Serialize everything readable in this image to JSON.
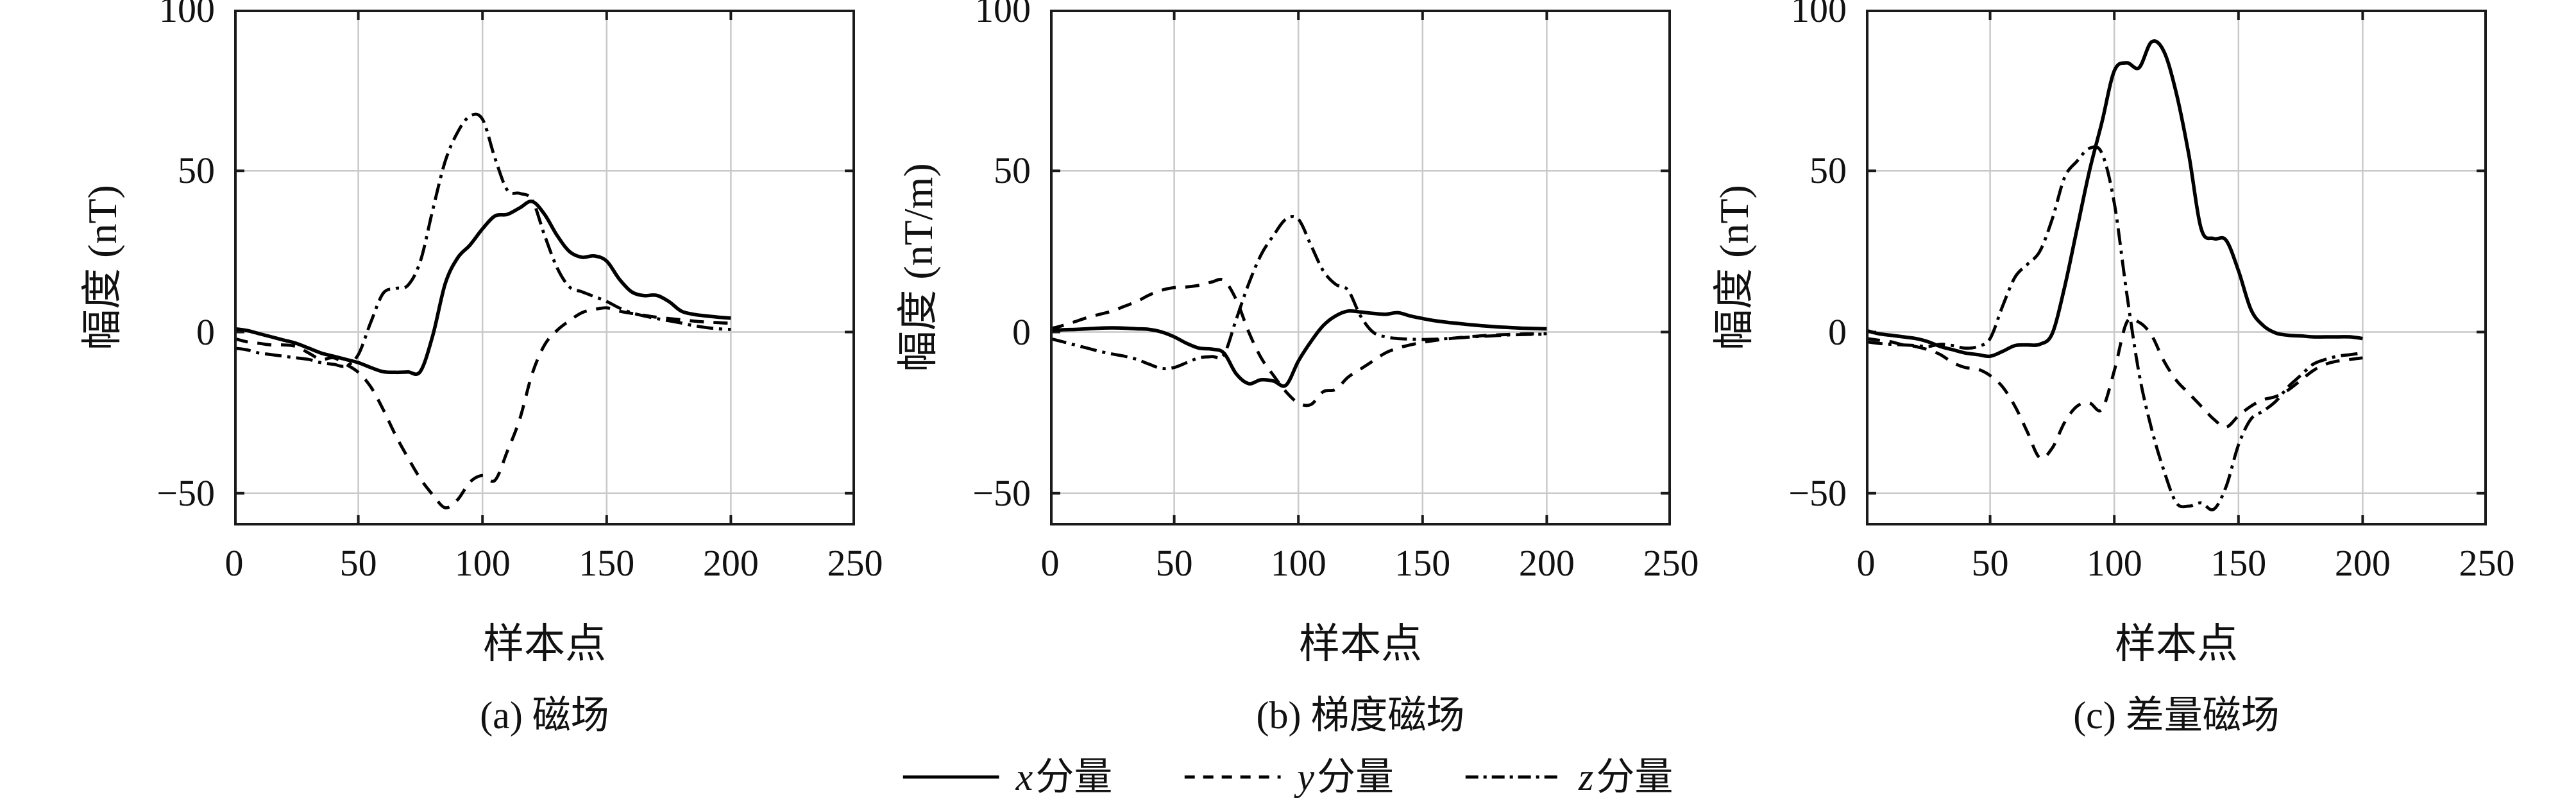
{
  "figure": {
    "background": "#ffffff",
    "curve_color": "#000000",
    "grid_color": "#c9c9c9",
    "axis_color": "#1a1a1a"
  },
  "legend": {
    "items": [
      {
        "var": "x",
        "text": "分量",
        "style": "solid"
      },
      {
        "var": "y",
        "text": "分量",
        "style": "dashed"
      },
      {
        "var": "z",
        "text": "分量",
        "style": "dashdot"
      }
    ]
  },
  "chart_data": [
    {
      "id": "a",
      "type": "line",
      "caption": "(a) 磁场",
      "xlabel": "样本点",
      "ylabel": "幅度 (nT)",
      "xlim": [
        0,
        250
      ],
      "ylim": [
        -60,
        100
      ],
      "xticks": [
        0,
        50,
        100,
        150,
        200,
        250
      ],
      "yticks": [
        100,
        50,
        0,
        -50
      ],
      "grid": true,
      "legend_position": "below-figure",
      "x_start": 0,
      "x_step": 5,
      "series": [
        {
          "name": "x分量",
          "style": "solid",
          "values": [
            1,
            0.5,
            -0.5,
            -1.5,
            -2.5,
            -3.5,
            -5,
            -6.5,
            -7.5,
            -8.5,
            -9.5,
            -11,
            -12.3,
            -12.5,
            -12.4,
            -12.2,
            -1,
            15,
            23,
            27,
            32,
            36,
            36.5,
            38.5,
            40.5,
            36.5,
            30,
            25,
            23.2,
            23.6,
            22,
            16.5,
            12.5,
            11.3,
            11.4,
            9.5,
            6.5,
            5.5,
            5,
            4.6,
            4.3
          ]
        },
        {
          "name": "y分量",
          "style": "dashed",
          "values": [
            -2,
            -3,
            -3.5,
            -4,
            -4,
            -4.5,
            -6.5,
            -8.5,
            -8,
            -10,
            -12.5,
            -17,
            -24,
            -32,
            -39,
            -45.5,
            -50.5,
            -54.5,
            -52,
            -46.5,
            -44.5,
            -46,
            -37,
            -27,
            -13,
            -4,
            0.5,
            3.5,
            6,
            7,
            7.5,
            6.5,
            5.8,
            5.2,
            4.6,
            4.2,
            3.8,
            3.4,
            3.1,
            2.9,
            2.7
          ]
        },
        {
          "name": "z分量",
          "style": "dashdot",
          "values": [
            -5,
            -5.5,
            -6.5,
            -7,
            -7.5,
            -8,
            -8.5,
            -9.5,
            -10,
            -10.5,
            -7,
            3,
            12,
            13.5,
            14.5,
            22,
            38,
            53,
            62,
            67,
            66,
            54,
            44,
            43,
            41,
            30,
            20,
            14,
            12.5,
            11,
            9.5,
            7.5,
            6,
            5,
            4.2,
            3.5,
            2.8,
            2,
            1.4,
            1,
            0.8
          ]
        }
      ]
    },
    {
      "id": "b",
      "type": "line",
      "caption": "(b) 梯度磁场",
      "xlabel": "样本点",
      "ylabel": "幅度 (nT/m)",
      "xlim": [
        0,
        250
      ],
      "ylim": [
        -60,
        100
      ],
      "xticks": [
        0,
        50,
        100,
        150,
        200,
        250
      ],
      "yticks": [
        100,
        50,
        0,
        -50
      ],
      "grid": true,
      "legend_position": "below-figure",
      "x_start": 0,
      "x_step": 5,
      "series": [
        {
          "name": "x分量",
          "style": "solid",
          "values": [
            0.5,
            0.7,
            0.8,
            1,
            1.2,
            1.3,
            1.2,
            1,
            0.8,
            0,
            -1.5,
            -3.5,
            -5,
            -5.3,
            -6.5,
            -13,
            -16,
            -14.8,
            -15.2,
            -16.5,
            -9,
            -3,
            2,
            5,
            6.5,
            6.2,
            5.8,
            5.5,
            6,
            5,
            4.2,
            3.5,
            3,
            2.6,
            2.2,
            1.9,
            1.6,
            1.4,
            1.2,
            1.1,
            1
          ]
        },
        {
          "name": "y分量",
          "style": "dashed",
          "values": [
            1,
            2,
            3.2,
            4.5,
            5.5,
            6.5,
            8,
            9.5,
            11.5,
            13,
            13.8,
            14,
            14.5,
            15.5,
            16,
            10,
            0,
            -8,
            -13.5,
            -18.5,
            -22,
            -22.5,
            -18.5,
            -17.8,
            -14,
            -11.5,
            -9,
            -6.5,
            -5,
            -4,
            -3.2,
            -2.6,
            -2.1,
            -1.7,
            -1.4,
            -1.1,
            -0.9,
            -0.75,
            -0.6,
            -0.55,
            -0.5
          ]
        },
        {
          "name": "z分量",
          "style": "dashdot",
          "values": [
            -2,
            -3,
            -4,
            -5,
            -6,
            -6.8,
            -7.5,
            -8.5,
            -10,
            -11.3,
            -11,
            -9.5,
            -8,
            -7.6,
            -7,
            4,
            15,
            24,
            30,
            35,
            35,
            27,
            19,
            14.8,
            13,
            5,
            0,
            -1.5,
            -2,
            -2.2,
            -2.3,
            -2.2,
            -2,
            -1.8,
            -1.5,
            -1.3,
            -1.1,
            -0.9,
            -0.8,
            -0.7,
            -0.7
          ]
        }
      ]
    },
    {
      "id": "c",
      "type": "line",
      "caption": "(c) 差量磁场",
      "xlabel": "样本点",
      "ylabel": "幅度 (nT)",
      "xlim": [
        0,
        250
      ],
      "ylim": [
        -60,
        100
      ],
      "xticks": [
        0,
        50,
        100,
        150,
        200,
        250
      ],
      "yticks": [
        100,
        50,
        0,
        -50
      ],
      "grid": true,
      "legend_position": "below-figure",
      "x_start": 0,
      "x_step": 5,
      "series": [
        {
          "name": "x分量",
          "style": "solid",
          "values": [
            0.5,
            -0.5,
            -1,
            -1.5,
            -2,
            -3,
            -4.5,
            -5.5,
            -6.5,
            -7,
            -7.5,
            -6,
            -4.2,
            -4,
            -3.8,
            -0.5,
            14,
            32,
            50,
            65,
            81,
            83.5,
            82,
            90,
            87,
            74,
            55,
            32,
            29,
            28.5,
            19,
            7,
            2,
            -0.3,
            -1,
            -1.2,
            -1.5,
            -1.5,
            -1.5,
            -1.5,
            -2
          ]
        },
        {
          "name": "y分量",
          "style": "dashed",
          "values": [
            -2,
            -2.5,
            -3,
            -4,
            -4.5,
            -5.5,
            -7,
            -9.5,
            -11,
            -11.5,
            -13.5,
            -17,
            -23,
            -31,
            -39,
            -36,
            -28,
            -23,
            -22,
            -24,
            -12,
            3,
            3,
            -1,
            -9,
            -15,
            -19,
            -23,
            -27,
            -29.5,
            -26,
            -23,
            -21,
            -20,
            -18,
            -15,
            -12,
            -10,
            -9,
            -8.5,
            -8
          ]
        },
        {
          "name": "z分量",
          "style": "dashdot",
          "values": [
            -3,
            -3.5,
            -3.8,
            -4,
            -4.2,
            -4.5,
            -3.8,
            -4.2,
            -5,
            -4.5,
            -2,
            8,
            17,
            21,
            25,
            35,
            48,
            53,
            57,
            55.5,
            40,
            12,
            -13,
            -30,
            -43,
            -53,
            -54,
            -53,
            -55,
            -48,
            -35,
            -27,
            -24.5,
            -21.5,
            -17,
            -13.5,
            -10,
            -8.5,
            -7.5,
            -7,
            -6.5
          ]
        }
      ]
    }
  ]
}
